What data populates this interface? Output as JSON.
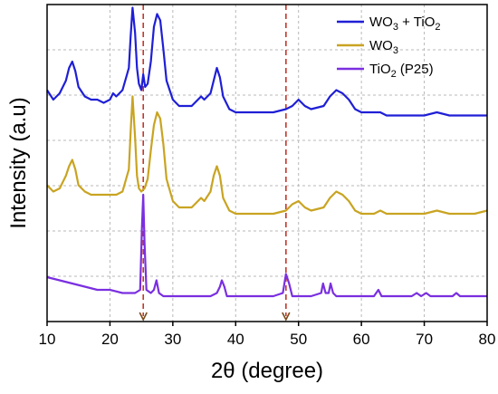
{
  "chart_data": {
    "type": "line",
    "xlabel": "2θ (degree)",
    "ylabel": "Intensity (a.u)",
    "xlim": [
      10,
      80
    ],
    "x_ticks": [
      "10",
      "20",
      "30",
      "40",
      "50",
      "60",
      "70",
      "80"
    ],
    "grid": true,
    "legend_position": "top-right",
    "reference_lines_x": [
      25.3,
      48.0
    ],
    "reference_line_color": "#c0392b",
    "series": [
      {
        "name": "WO3 + TiO2",
        "legend_base": "WO",
        "legend_sub": "3",
        "legend_mid": " + TiO",
        "legend_sub2": "2",
        "color": "#1f1fd6",
        "x": [
          10,
          11,
          12,
          13,
          13.5,
          14,
          14.5,
          15,
          16,
          17,
          18,
          19,
          20,
          20.5,
          21,
          22,
          23,
          23.3,
          23.6,
          24,
          24.3,
          24.6,
          25,
          25.3,
          25.6,
          26,
          26.5,
          27,
          27.5,
          28,
          28.5,
          29,
          30,
          31,
          32,
          33,
          34,
          34.5,
          35,
          36,
          36.5,
          37,
          37.5,
          38,
          39,
          40,
          42,
          44,
          46,
          48,
          49,
          50,
          51,
          52,
          54,
          55,
          56,
          57,
          58,
          59,
          60,
          62,
          63,
          64,
          66,
          68,
          70,
          72,
          74,
          76,
          78,
          80
        ],
        "y": [
          0.73,
          0.7,
          0.72,
          0.76,
          0.8,
          0.82,
          0.79,
          0.74,
          0.71,
          0.7,
          0.7,
          0.69,
          0.7,
          0.72,
          0.71,
          0.73,
          0.8,
          0.9,
          0.99,
          0.91,
          0.8,
          0.75,
          0.73,
          0.78,
          0.74,
          0.75,
          0.82,
          0.93,
          0.97,
          0.95,
          0.86,
          0.76,
          0.7,
          0.68,
          0.68,
          0.68,
          0.7,
          0.71,
          0.7,
          0.72,
          0.76,
          0.8,
          0.77,
          0.71,
          0.67,
          0.66,
          0.66,
          0.66,
          0.66,
          0.67,
          0.68,
          0.7,
          0.68,
          0.67,
          0.68,
          0.71,
          0.73,
          0.72,
          0.7,
          0.67,
          0.66,
          0.66,
          0.66,
          0.65,
          0.65,
          0.65,
          0.65,
          0.66,
          0.65,
          0.65,
          0.65,
          0.65
        ]
      },
      {
        "name": "WO3",
        "legend_base": "WO",
        "legend_sub": "3",
        "legend_mid": "",
        "legend_sub2": "",
        "color": "#c9a422",
        "x": [
          10,
          11,
          12,
          13,
          13.5,
          14,
          14.5,
          15,
          16,
          17,
          18,
          19,
          20,
          21,
          22,
          23,
          23.3,
          23.6,
          24,
          24.3,
          24.6,
          25,
          25.5,
          26,
          26.5,
          27,
          27.5,
          28,
          28.5,
          29,
          30,
          31,
          32,
          33,
          34,
          34.5,
          35,
          36,
          36.5,
          37,
          37.5,
          38,
          39,
          40,
          42,
          44,
          46,
          48,
          49,
          50,
          51,
          52,
          54,
          55,
          56,
          57,
          58,
          59,
          60,
          62,
          63,
          64,
          66,
          68,
          70,
          72,
          74,
          76,
          78,
          80
        ],
        "y": [
          0.43,
          0.41,
          0.42,
          0.46,
          0.49,
          0.51,
          0.48,
          0.43,
          0.41,
          0.4,
          0.4,
          0.4,
          0.4,
          0.4,
          0.41,
          0.48,
          0.6,
          0.71,
          0.58,
          0.46,
          0.42,
          0.41,
          0.42,
          0.45,
          0.54,
          0.62,
          0.66,
          0.64,
          0.56,
          0.45,
          0.38,
          0.36,
          0.36,
          0.36,
          0.38,
          0.39,
          0.38,
          0.41,
          0.46,
          0.49,
          0.46,
          0.39,
          0.35,
          0.34,
          0.34,
          0.34,
          0.34,
          0.35,
          0.37,
          0.38,
          0.36,
          0.35,
          0.36,
          0.39,
          0.41,
          0.4,
          0.38,
          0.35,
          0.34,
          0.34,
          0.35,
          0.34,
          0.34,
          0.34,
          0.34,
          0.35,
          0.34,
          0.34,
          0.34,
          0.35
        ]
      },
      {
        "name": "TiO2 (P25)",
        "legend_base": "TiO",
        "legend_sub": "2",
        "legend_mid": " (P25)",
        "legend_sub2": "",
        "color": "#7a2fe0",
        "x": [
          10,
          12,
          14,
          16,
          18,
          20,
          22,
          24,
          24.8,
          25.1,
          25.3,
          25.5,
          25.8,
          26.5,
          27,
          27.4,
          27.8,
          28.5,
          30,
          32,
          34,
          36,
          37,
          37.5,
          37.8,
          38.2,
          38.6,
          40,
          42,
          44,
          46,
          47.5,
          48.0,
          48.5,
          49,
          50,
          52,
          53.6,
          53.9,
          54.3,
          54.8,
          55.1,
          55.5,
          56,
          58,
          60,
          62,
          62.7,
          63.2,
          64,
          66,
          68,
          68.8,
          69.5,
          70.3,
          71,
          73,
          74.5,
          75.1,
          75.7,
          77,
          80
        ],
        "y": [
          0.14,
          0.13,
          0.12,
          0.11,
          0.1,
          0.1,
          0.09,
          0.09,
          0.1,
          0.3,
          0.4,
          0.25,
          0.1,
          0.09,
          0.1,
          0.13,
          0.09,
          0.08,
          0.08,
          0.08,
          0.08,
          0.08,
          0.09,
          0.11,
          0.13,
          0.11,
          0.08,
          0.08,
          0.08,
          0.08,
          0.08,
          0.09,
          0.15,
          0.12,
          0.08,
          0.08,
          0.08,
          0.09,
          0.12,
          0.09,
          0.09,
          0.12,
          0.09,
          0.08,
          0.08,
          0.08,
          0.08,
          0.1,
          0.08,
          0.08,
          0.08,
          0.08,
          0.09,
          0.08,
          0.09,
          0.08,
          0.08,
          0.08,
          0.09,
          0.08,
          0.08,
          0.08
        ]
      }
    ]
  }
}
